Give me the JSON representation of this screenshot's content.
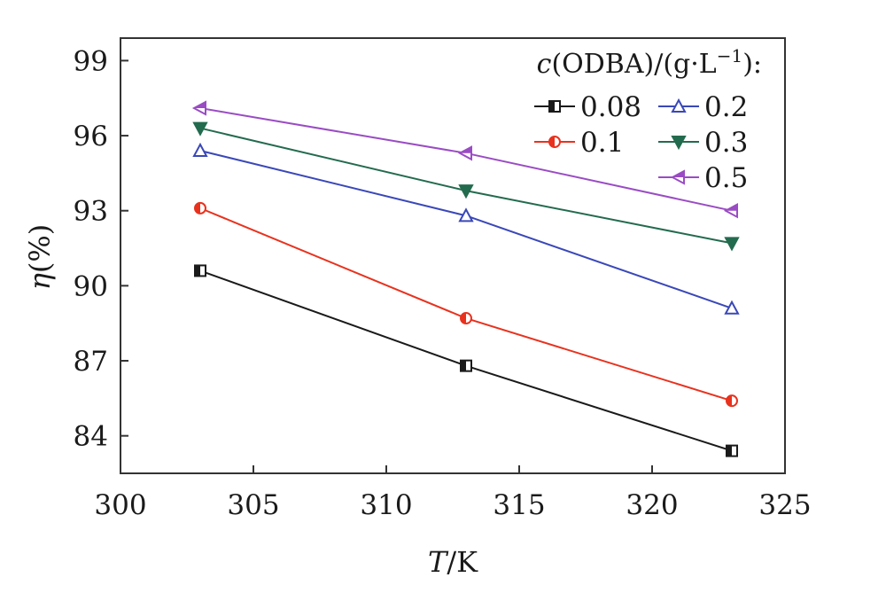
{
  "chart_data": {
    "type": "line",
    "title": "",
    "xlabel": "T/K",
    "xlabel_var": "T",
    "xlabel_unit": "/K",
    "ylabel": "η(%)",
    "ylabel_var": "η",
    "ylabel_unit": "(%)",
    "xlim": [
      300,
      325
    ],
    "ylim": [
      82.5,
      99.9
    ],
    "xticks": [
      300,
      305,
      310,
      315,
      320,
      325
    ],
    "yticks": [
      84,
      87,
      90,
      93,
      96,
      99
    ],
    "grid": false,
    "legend": {
      "title_var": "c",
      "title_rest": "(ODBA)/(g·L",
      "title_sup": "−1",
      "title_end": "):",
      "placement": "top-right"
    },
    "x": [
      303,
      313,
      323
    ],
    "series": [
      {
        "name": "0.08",
        "marker": "square",
        "color": "#1a1a1a",
        "values": [
          90.6,
          86.8,
          83.4
        ]
      },
      {
        "name": "0.1",
        "marker": "circle",
        "color": "#e8321e",
        "values": [
          93.1,
          88.7,
          85.4
        ]
      },
      {
        "name": "0.2",
        "marker": "triangle-up",
        "color": "#3a48b8",
        "values": [
          95.4,
          92.8,
          89.1
        ]
      },
      {
        "name": "0.3",
        "marker": "triangle-down",
        "color": "#236b4e",
        "values": [
          96.3,
          93.8,
          91.7
        ]
      },
      {
        "name": "0.5",
        "marker": "triangle-left",
        "color": "#9a4cc4",
        "values": [
          97.1,
          95.3,
          93.0
        ]
      }
    ]
  }
}
